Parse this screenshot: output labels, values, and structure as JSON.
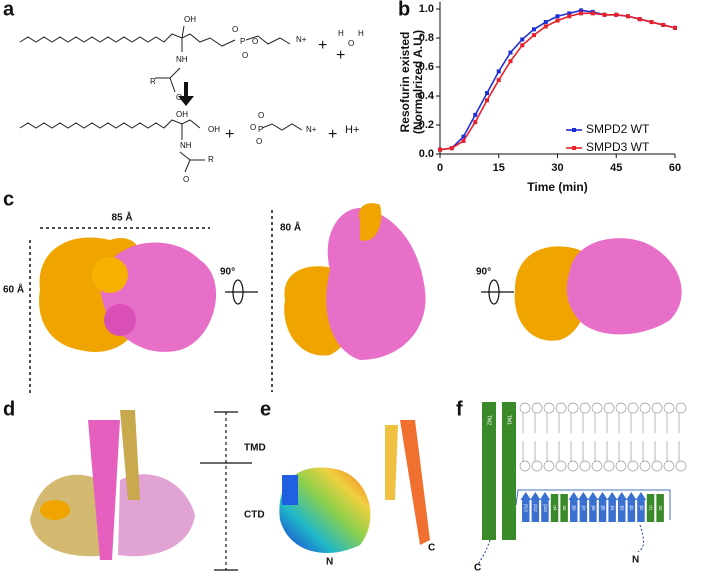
{
  "panel_letters": [
    "a",
    "b",
    "c",
    "d",
    "e",
    "f"
  ],
  "panel_a": {
    "top_labels": [
      "OH",
      "NH",
      "R",
      "O",
      "O",
      "P",
      "O",
      "O",
      "N+",
      "+",
      "O",
      "H",
      "H",
      "+"
    ],
    "bottom_labels": [
      "OH",
      "OH",
      "NH",
      "R",
      "O",
      "+",
      "O",
      "P",
      "O",
      "O",
      "N+",
      "+",
      "H+"
    ]
  },
  "chart_data": {
    "type": "line",
    "ylabel": [
      "Resofurin existed",
      "(Normalrized A.U.)"
    ],
    "xlabel": "Time (min)",
    "x": [
      0,
      3,
      6,
      9,
      12,
      15,
      18,
      21,
      24,
      27,
      30,
      33,
      36,
      39,
      42,
      45,
      48,
      51,
      54,
      57,
      60
    ],
    "series": [
      {
        "name": "SMPD2 WT",
        "color": "#1f2fd6",
        "values": [
          0.03,
          0.04,
          0.12,
          0.27,
          0.42,
          0.57,
          0.7,
          0.79,
          0.86,
          0.91,
          0.95,
          0.97,
          0.99,
          0.98,
          0.96,
          0.96,
          0.95,
          0.93,
          0.91,
          0.89,
          0.87
        ]
      },
      {
        "name": "SMPD3 WT",
        "color": "#e8202a",
        "values": [
          0.03,
          0.04,
          0.09,
          0.22,
          0.37,
          0.51,
          0.64,
          0.75,
          0.82,
          0.88,
          0.92,
          0.95,
          0.97,
          0.97,
          0.96,
          0.96,
          0.95,
          0.93,
          0.91,
          0.89,
          0.87
        ]
      }
    ],
    "xlim": [
      0,
      60
    ],
    "xticks": [
      0,
      15,
      30,
      45,
      60
    ],
    "ylim": [
      0,
      1.05
    ],
    "yticks": [
      {
        "value": 0,
        "label": "0.0"
      },
      0.2,
      0.4,
      0.6,
      0.8,
      {
        "value": 1,
        "label": "1.0"
      }
    ],
    "legend": "lower right"
  },
  "panel_c": {
    "width": "85 Å",
    "height": "60 Å",
    "depth": "80 Å",
    "rotations": [
      "90°",
      "90°"
    ]
  },
  "panel_d": {
    "tmd": "TMD",
    "ctd": "CTD"
  },
  "panel_e": {
    "n": "N",
    "c": "C"
  },
  "panel_f": {
    "helices": [
      "TM2",
      "TM1"
    ],
    "elements": [
      "β13",
      "β12",
      "β10",
      "α4",
      "α5",
      "β9",
      "β7",
      "β6",
      "β5",
      "β4",
      "β3",
      "β1",
      "β2",
      "α1",
      "α2"
    ],
    "c": "C",
    "n": "N"
  }
}
